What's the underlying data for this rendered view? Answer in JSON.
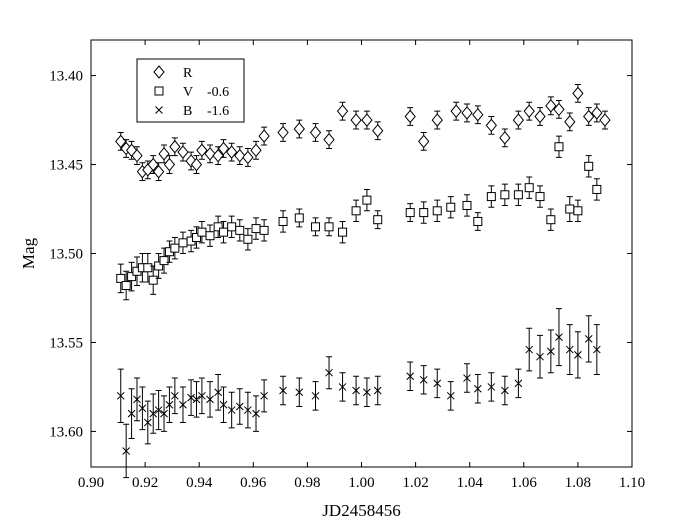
{
  "chart_data": {
    "type": "scatter",
    "xlabel": "JD2458456",
    "ylabel": "Mag",
    "xlim": [
      0.9,
      1.1
    ],
    "ylim": [
      13.38,
      13.62
    ],
    "y_inverted": true,
    "xticks": [
      "0.90",
      "0.92",
      "0.94",
      "0.96",
      "0.98",
      "1.00",
      "1.02",
      "1.04",
      "1.06",
      "1.08",
      "1.10"
    ],
    "yticks": [
      "13.40",
      "13.45",
      "13.50",
      "13.55",
      "13.60"
    ],
    "grid": false,
    "legend_position": "top-left",
    "series": [
      {
        "name": "R",
        "offset": "",
        "marker": "diamond",
        "x": [
          0.911,
          0.913,
          0.915,
          0.917,
          0.919,
          0.921,
          0.923,
          0.925,
          0.927,
          0.929,
          0.931,
          0.934,
          0.937,
          0.939,
          0.941,
          0.944,
          0.947,
          0.949,
          0.952,
          0.955,
          0.958,
          0.961,
          0.964,
          0.971,
          0.977,
          0.983,
          0.988,
          0.993,
          0.998,
          1.002,
          1.006,
          1.018,
          1.023,
          1.028,
          1.035,
          1.039,
          1.043,
          1.048,
          1.053,
          1.058,
          1.062,
          1.066,
          1.07,
          1.073,
          1.077,
          1.08,
          1.084,
          1.087,
          1.09
        ],
        "y": [
          13.437,
          13.441,
          13.442,
          13.445,
          13.454,
          13.453,
          13.45,
          13.454,
          13.444,
          13.45,
          13.44,
          13.443,
          13.448,
          13.45,
          13.442,
          13.444,
          13.445,
          13.441,
          13.443,
          13.445,
          13.446,
          13.442,
          13.434,
          13.432,
          13.43,
          13.432,
          13.436,
          13.42,
          13.425,
          13.425,
          13.431,
          13.423,
          13.437,
          13.425,
          13.42,
          13.421,
          13.422,
          13.428,
          13.435,
          13.425,
          13.42,
          13.423,
          13.417,
          13.419,
          13.426,
          13.41,
          13.423,
          13.421,
          13.425
        ],
        "err": [
          0.005,
          0.005,
          0.005,
          0.005,
          0.005,
          0.005,
          0.005,
          0.005,
          0.005,
          0.005,
          0.005,
          0.005,
          0.005,
          0.005,
          0.005,
          0.005,
          0.005,
          0.005,
          0.005,
          0.005,
          0.005,
          0.005,
          0.005,
          0.005,
          0.005,
          0.005,
          0.005,
          0.005,
          0.005,
          0.005,
          0.005,
          0.005,
          0.005,
          0.005,
          0.005,
          0.005,
          0.005,
          0.005,
          0.005,
          0.005,
          0.005,
          0.005,
          0.005,
          0.005,
          0.005,
          0.005,
          0.005,
          0.005,
          0.005
        ]
      },
      {
        "name": "V",
        "offset": "-0.6",
        "marker": "square",
        "x": [
          0.911,
          0.913,
          0.915,
          0.917,
          0.919,
          0.921,
          0.923,
          0.925,
          0.927,
          0.929,
          0.931,
          0.934,
          0.937,
          0.939,
          0.941,
          0.944,
          0.947,
          0.949,
          0.952,
          0.955,
          0.958,
          0.961,
          0.964,
          0.971,
          0.977,
          0.983,
          0.988,
          0.993,
          0.998,
          1.002,
          1.006,
          1.018,
          1.023,
          1.028,
          1.033,
          1.039,
          1.043,
          1.048,
          1.053,
          1.058,
          1.062,
          1.066,
          1.07,
          1.073,
          1.077,
          1.08,
          1.084,
          1.087
        ],
        "y": [
          13.514,
          13.518,
          13.513,
          13.51,
          13.508,
          13.508,
          13.515,
          13.507,
          13.504,
          13.499,
          13.497,
          13.494,
          13.493,
          13.491,
          13.488,
          13.49,
          13.485,
          13.488,
          13.485,
          13.487,
          13.492,
          13.486,
          13.487,
          13.482,
          13.48,
          13.485,
          13.485,
          13.488,
          13.476,
          13.47,
          13.481,
          13.477,
          13.477,
          13.476,
          13.474,
          13.473,
          13.482,
          13.468,
          13.467,
          13.467,
          13.463,
          13.468,
          13.481,
          13.44,
          13.475,
          13.476,
          13.451,
          13.464
        ],
        "err": [
          0.008,
          0.008,
          0.008,
          0.008,
          0.008,
          0.008,
          0.008,
          0.007,
          0.007,
          0.006,
          0.006,
          0.006,
          0.006,
          0.006,
          0.006,
          0.006,
          0.006,
          0.006,
          0.006,
          0.006,
          0.006,
          0.006,
          0.006,
          0.006,
          0.005,
          0.005,
          0.005,
          0.006,
          0.006,
          0.006,
          0.005,
          0.005,
          0.006,
          0.006,
          0.006,
          0.006,
          0.005,
          0.006,
          0.006,
          0.006,
          0.006,
          0.006,
          0.006,
          0.006,
          0.007,
          0.006,
          0.006,
          0.006
        ]
      },
      {
        "name": "B",
        "offset": "-1.6",
        "marker": "cross",
        "x": [
          0.911,
          0.913,
          0.915,
          0.917,
          0.919,
          0.921,
          0.923,
          0.925,
          0.927,
          0.929,
          0.931,
          0.934,
          0.937,
          0.939,
          0.941,
          0.944,
          0.947,
          0.949,
          0.952,
          0.955,
          0.958,
          0.961,
          0.964,
          0.971,
          0.977,
          0.983,
          0.988,
          0.993,
          0.998,
          1.002,
          1.006,
          1.018,
          1.023,
          1.028,
          1.033,
          1.039,
          1.043,
          1.048,
          1.053,
          1.058,
          1.062,
          1.066,
          1.07,
          1.073,
          1.077,
          1.08,
          1.084,
          1.087
        ],
        "y": [
          13.58,
          13.611,
          13.59,
          13.582,
          13.587,
          13.595,
          13.59,
          13.588,
          13.59,
          13.585,
          13.58,
          13.585,
          13.581,
          13.582,
          13.58,
          13.582,
          13.578,
          13.585,
          13.588,
          13.586,
          13.588,
          13.59,
          13.58,
          13.577,
          13.578,
          13.58,
          13.567,
          13.575,
          13.577,
          13.578,
          13.577,
          13.569,
          13.571,
          13.573,
          13.58,
          13.57,
          13.576,
          13.575,
          13.577,
          13.573,
          13.554,
          13.558,
          13.555,
          13.547,
          13.554,
          13.557,
          13.548,
          13.554
        ],
        "err": [
          0.015,
          0.015,
          0.014,
          0.012,
          0.012,
          0.012,
          0.011,
          0.011,
          0.01,
          0.01,
          0.01,
          0.01,
          0.01,
          0.01,
          0.01,
          0.01,
          0.01,
          0.01,
          0.01,
          0.01,
          0.01,
          0.01,
          0.009,
          0.008,
          0.008,
          0.008,
          0.009,
          0.008,
          0.008,
          0.008,
          0.008,
          0.008,
          0.008,
          0.008,
          0.008,
          0.008,
          0.008,
          0.008,
          0.008,
          0.008,
          0.012,
          0.012,
          0.012,
          0.016,
          0.014,
          0.013,
          0.013,
          0.014
        ]
      }
    ]
  }
}
